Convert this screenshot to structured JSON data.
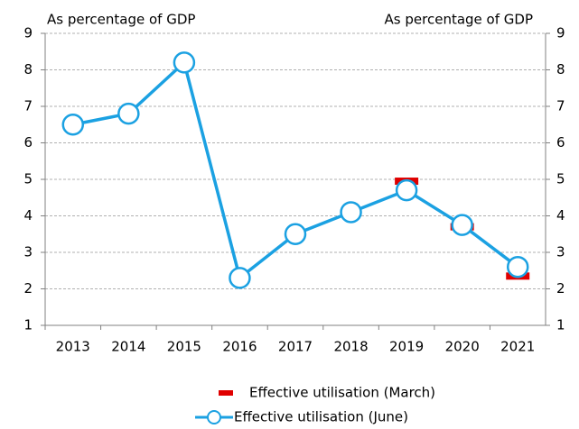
{
  "chart_data": {
    "type": "line",
    "left_label": "As percentage of GDP",
    "right_label": "As percentage of GDP",
    "categories": [
      "2013",
      "2014",
      "2015",
      "2016",
      "2017",
      "2018",
      "2019",
      "2020",
      "2021"
    ],
    "series": [
      {
        "name": "Effective utilisation (March)",
        "color": "#e00000",
        "style": "dash",
        "values": [
          null,
          null,
          null,
          null,
          null,
          null,
          4.95,
          3.7,
          2.35
        ]
      },
      {
        "name": "Effective utilisation (June)",
        "color": "#1ba1e2",
        "style": "line-marker",
        "values": [
          6.5,
          6.8,
          8.2,
          2.3,
          3.5,
          4.1,
          4.7,
          3.75,
          2.6
        ]
      }
    ],
    "ylim": [
      1,
      9
    ],
    "yticks": [
      1,
      2,
      3,
      4,
      5,
      6,
      7,
      8,
      9
    ],
    "y2lim": [
      1,
      9
    ],
    "y2ticks": [
      1,
      2,
      3,
      4,
      5,
      6,
      7,
      8,
      9
    ],
    "grid": true
  }
}
